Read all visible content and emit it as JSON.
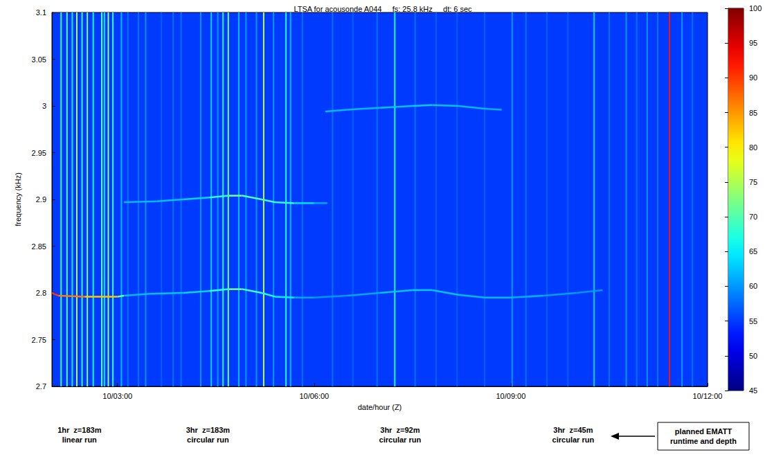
{
  "chart_data": {
    "type": "spectrogram",
    "title": "LTSA for acousonde A044     fs: 25.8 kHz     dt: 6 sec",
    "x_label": "date/hour (Z)",
    "y_label": "frequency (kHz)",
    "xlim": [
      2,
      12
    ],
    "xticks": [
      {
        "value": 3,
        "label": "10/03:00"
      },
      {
        "value": 6,
        "label": "10/06:00"
      },
      {
        "value": 9,
        "label": "10/09:00"
      },
      {
        "value": 12,
        "label": "10/12:00"
      }
    ],
    "ylim": [
      2.7,
      3.1
    ],
    "yticks": [
      2.7,
      2.75,
      2.8,
      2.85,
      2.9,
      2.95,
      3,
      3.05,
      3.1
    ],
    "grid": false,
    "colorbar": {
      "lim": [
        45,
        100
      ],
      "ticks": [
        45,
        50,
        55,
        60,
        65,
        70,
        75,
        80,
        85,
        90,
        95,
        100
      ]
    },
    "background_level": 55,
    "tonals": [
      {
        "x": [
          2.0,
          2.1,
          2.5,
          3.0,
          3.1,
          3.5,
          4.0,
          4.4,
          4.7,
          4.9,
          5.2,
          5.4,
          5.7,
          6.0,
          6.5,
          7.0,
          7.5,
          7.8,
          8.2,
          8.6,
          9.0,
          9.5,
          10.0,
          10.4
        ],
        "y": [
          2.8,
          2.797,
          2.796,
          2.796,
          2.797,
          2.799,
          2.8,
          2.802,
          2.804,
          2.804,
          2.8,
          2.796,
          2.795,
          2.795,
          2.797,
          2.8,
          2.803,
          2.803,
          2.798,
          2.795,
          2.795,
          2.797,
          2.8,
          2.803
        ],
        "level": [
          92,
          88,
          85,
          80,
          62,
          62,
          63,
          64,
          72,
          72,
          66,
          68,
          62,
          60,
          60,
          62,
          63,
          63,
          62,
          62,
          62,
          61,
          60,
          60
        ]
      },
      {
        "x": [
          3.1,
          3.6,
          4.0,
          4.4,
          4.7,
          4.9,
          5.2,
          5.4,
          5.7,
          6.0,
          6.2
        ],
        "y": [
          2.897,
          2.898,
          2.9,
          2.902,
          2.904,
          2.904,
          2.9,
          2.897,
          2.896,
          2.896,
          2.896
        ],
        "level": [
          62,
          62,
          63,
          64,
          72,
          72,
          68,
          70,
          66,
          62,
          60
        ]
      },
      {
        "x": [
          6.17,
          6.5,
          7.0,
          7.5,
          7.8,
          8.2,
          8.6,
          8.86
        ],
        "y": [
          2.994,
          2.996,
          2.998,
          3.0,
          3.001,
          3.0,
          2.997,
          2.996
        ],
        "level": [
          62,
          62,
          62,
          63,
          63,
          62,
          62,
          61
        ]
      }
    ],
    "broadband_events": {
      "x": [
        2.14,
        2.23,
        2.31,
        2.38,
        2.46,
        2.54,
        2.63,
        2.76,
        2.8,
        2.86,
        2.93,
        3.06,
        3.16,
        3.32,
        3.43,
        3.67,
        3.85,
        3.97,
        4.27,
        4.43,
        4.53,
        4.61,
        4.69,
        4.85,
        4.96,
        5.12,
        5.23,
        5.38,
        5.57,
        5.64,
        5.82,
        6.28,
        6.59,
        6.96,
        7.23,
        7.54,
        7.86,
        8.18,
        8.6,
        9.02,
        9.23,
        9.55,
        9.87,
        10.27,
        10.5,
        10.76,
        10.92,
        11.08,
        11.24,
        11.42,
        11.61,
        11.77
      ],
      "level": [
        68,
        70,
        65,
        75,
        68,
        72,
        66,
        70,
        65,
        74,
        68,
        62,
        58,
        58,
        60,
        57,
        58,
        58,
        60,
        63,
        60,
        66,
        72,
        62,
        60,
        60,
        76,
        60,
        66,
        62,
        58,
        58,
        57,
        58,
        66,
        58,
        57,
        57,
        57,
        60,
        58,
        57,
        57,
        63,
        58,
        60,
        58,
        60,
        58,
        92,
        60,
        58
      ]
    },
    "annotations": [
      {
        "x": 2.42,
        "text": [
          "1hr  z=183m",
          "linear run"
        ]
      },
      {
        "x": 4.38,
        "text": [
          "3hr  z=183m",
          "circular run"
        ]
      },
      {
        "x": 7.31,
        "text": [
          "3hr  z=92m",
          "circular run"
        ]
      },
      {
        "x": 9.95,
        "text": [
          "3hr  z=45m",
          "circular run"
        ]
      }
    ],
    "note": [
      "planned EMATT",
      "runtime and depth"
    ]
  }
}
